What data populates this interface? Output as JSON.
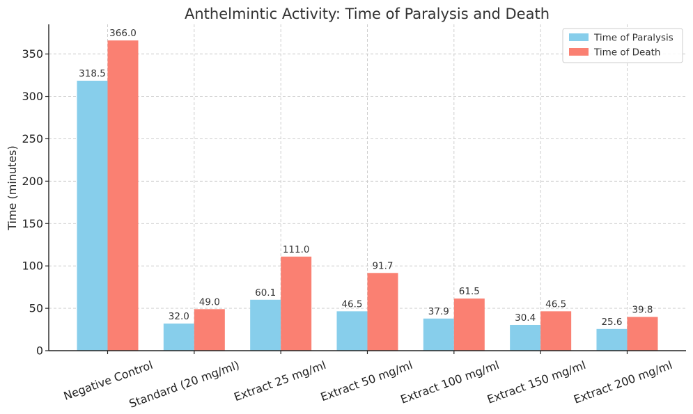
{
  "chart_data": {
    "type": "bar",
    "title": "Anthelmintic Activity: Time of Paralysis and Death",
    "xlabel": "",
    "ylabel": "Time (minutes)",
    "ylim": [
      0,
      385
    ],
    "yticks": [
      0,
      50,
      100,
      150,
      200,
      250,
      300,
      350
    ],
    "grid": true,
    "legend_position": "top-right",
    "categories": [
      "Negative Control",
      "Standard (20 mg/ml)",
      "Extract 25 mg/ml",
      "Extract 50 mg/ml",
      "Extract 100 mg/ml",
      "Extract 150 mg/ml",
      "Extract 200 mg/ml"
    ],
    "series": [
      {
        "name": "Time of Paralysis",
        "color": "#87ceeb",
        "values": [
          318.5,
          32.0,
          60.1,
          46.5,
          37.9,
          30.4,
          25.6
        ],
        "labels": [
          "318.5",
          "32.0",
          "60.1",
          "46.5",
          "37.9",
          "30.4",
          "25.6"
        ]
      },
      {
        "name": "Time of Death",
        "color": "#fa8072",
        "values": [
          366.0,
          49.0,
          111.0,
          91.7,
          61.5,
          46.5,
          39.8
        ],
        "labels": [
          "366.0",
          "49.0",
          "111.0",
          "91.7",
          "61.5",
          "46.5",
          "39.8"
        ]
      }
    ]
  }
}
